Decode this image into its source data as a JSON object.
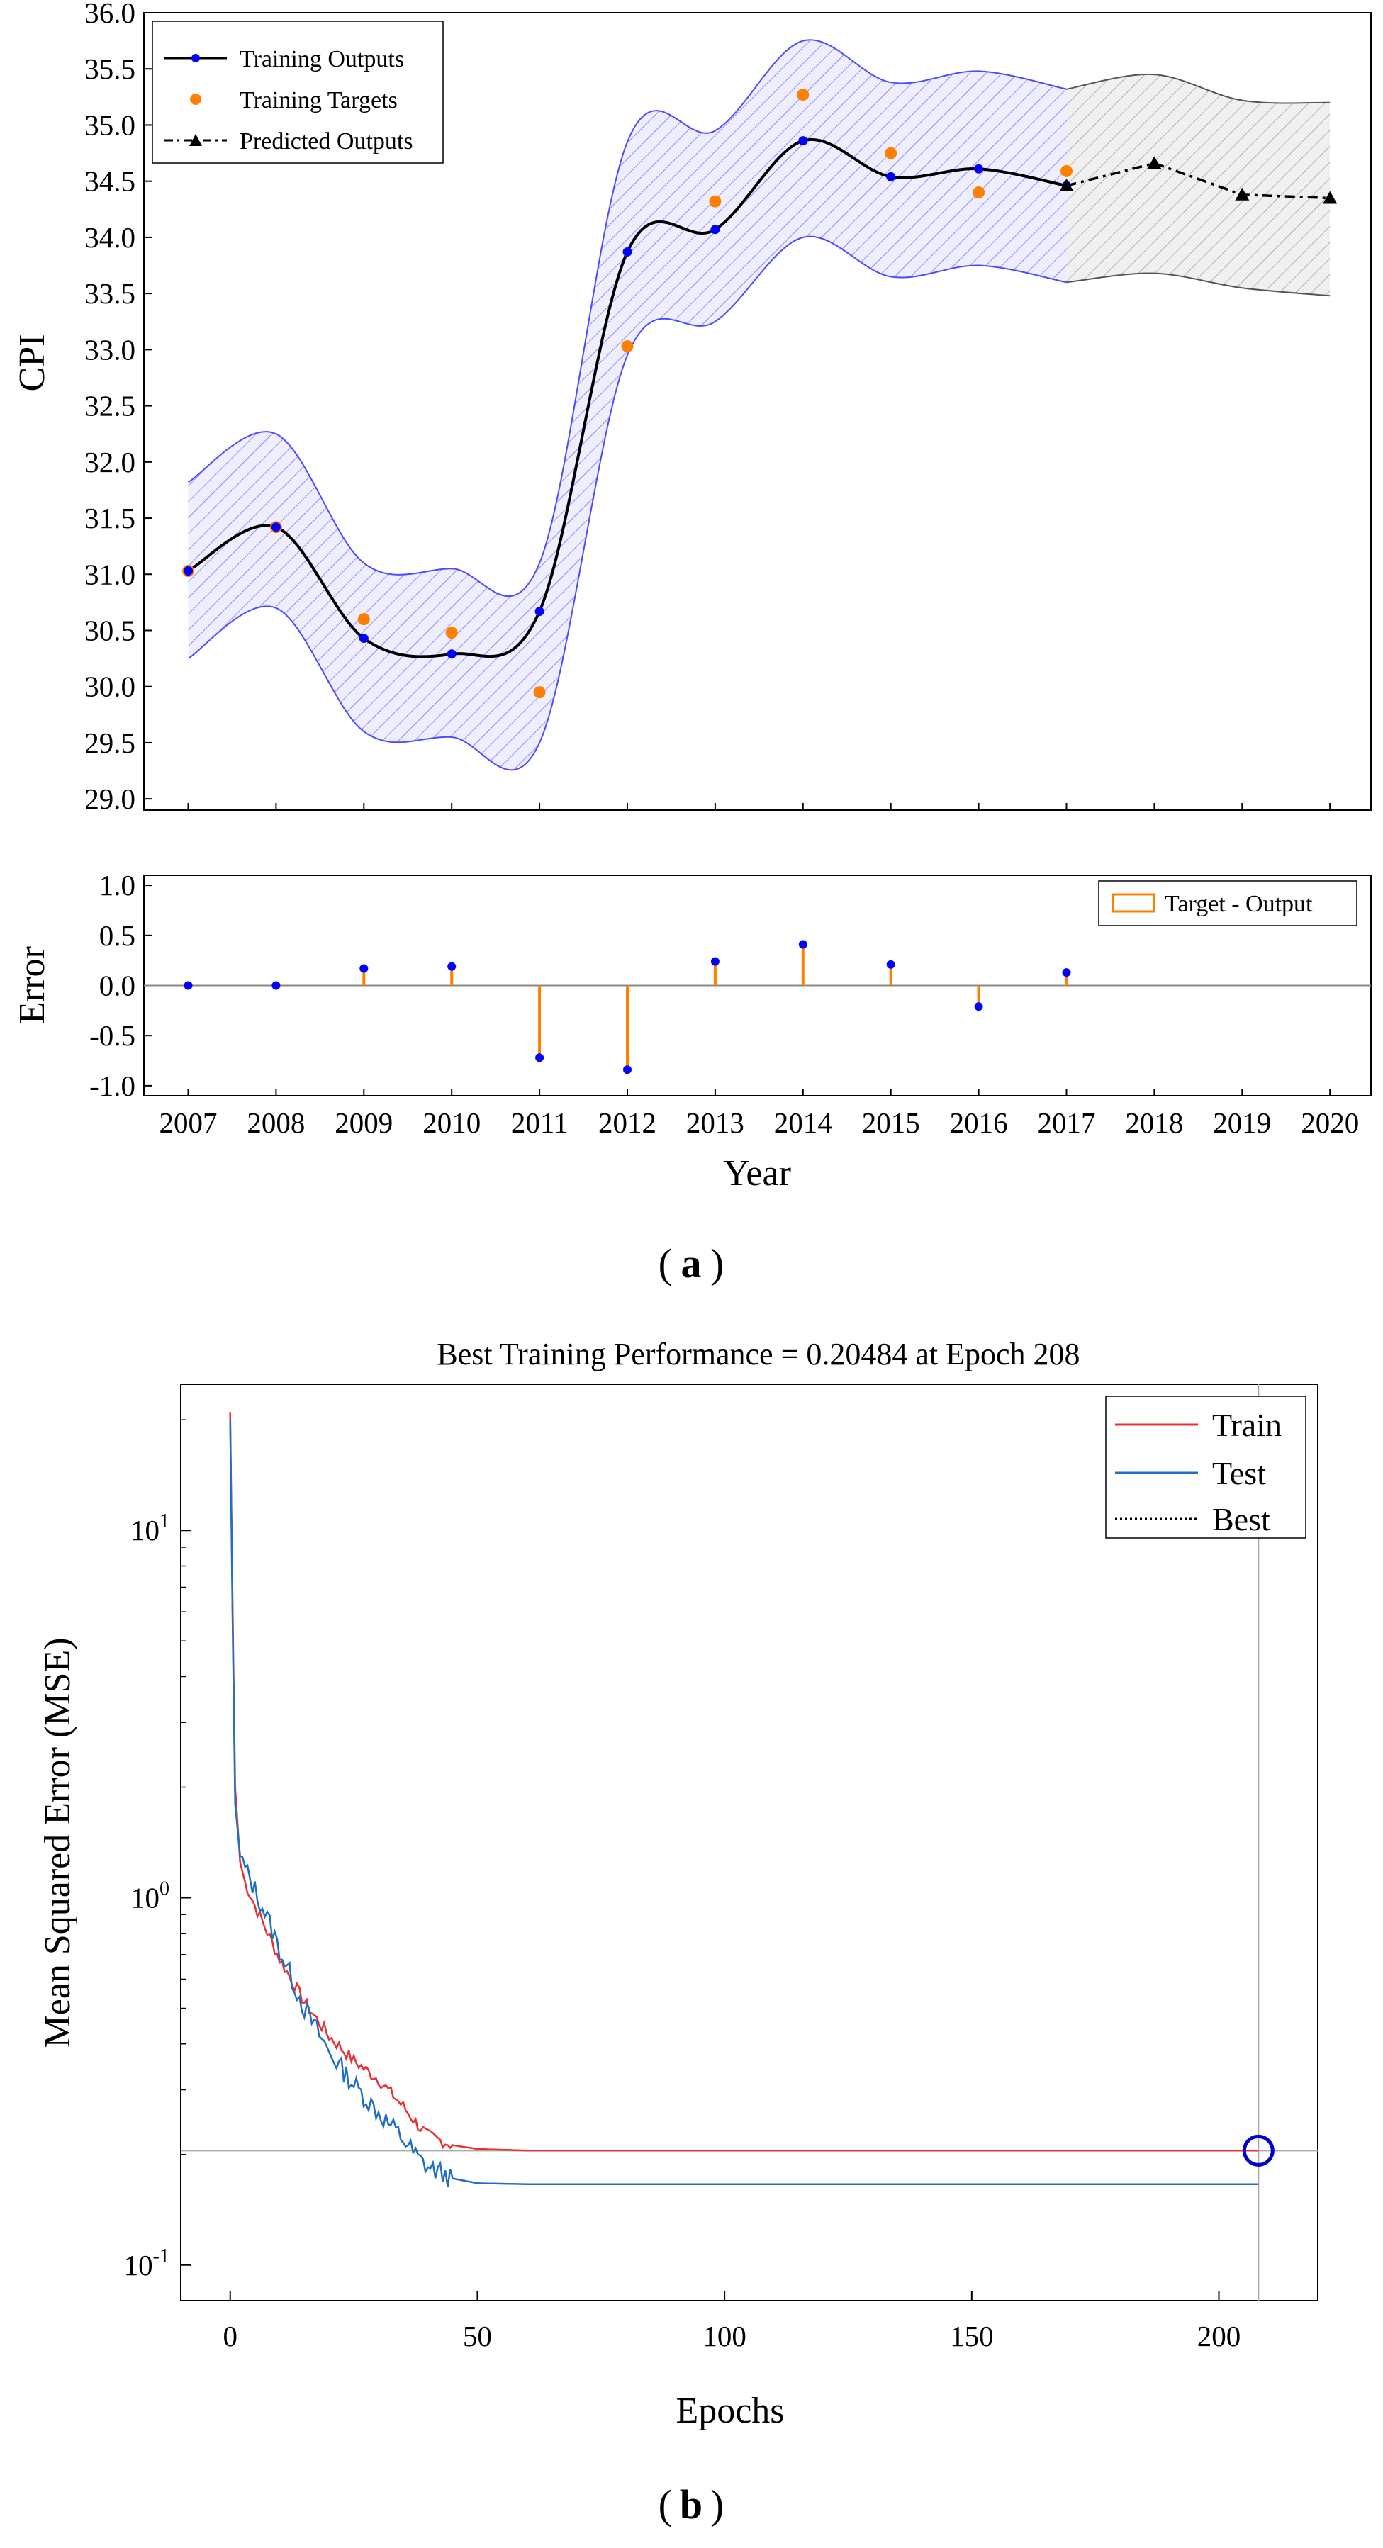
{
  "chart_data": [
    {
      "id": "a",
      "type": "line",
      "panel_label": "a",
      "title": "",
      "xlabel": "Year",
      "ylabel": "CPI",
      "x_ticks": [
        2007,
        2008,
        2009,
        2010,
        2011,
        2012,
        2013,
        2014,
        2015,
        2016,
        2017,
        2018,
        2019,
        2020
      ],
      "ylim": [
        28.9,
        36.0
      ],
      "y_ticks": [
        "29.0",
        "29.5",
        "30.0",
        "30.5",
        "31.0",
        "31.5",
        "32.0",
        "32.5",
        "33.0",
        "33.5",
        "34.0",
        "34.5",
        "35.0",
        "35.5",
        "36.0"
      ],
      "legend_position": "top-left",
      "series": [
        {
          "name": "Training Outputs",
          "color": "#0000ff",
          "x": [
            2007,
            2008,
            2009,
            2010,
            2011,
            2012,
            2013,
            2014,
            2015,
            2016,
            2017
          ],
          "values": [
            31.03,
            31.42,
            30.43,
            30.29,
            30.67,
            33.87,
            34.07,
            34.86,
            34.54,
            34.61,
            34.46
          ]
        },
        {
          "name": "Training Targets",
          "color": "#ff8000",
          "x": [
            2007,
            2008,
            2009,
            2010,
            2011,
            2012,
            2013,
            2014,
            2015,
            2016,
            2017
          ],
          "values": [
            31.03,
            31.42,
            30.6,
            30.48,
            29.95,
            33.03,
            34.32,
            35.27,
            34.75,
            34.4,
            34.59
          ]
        },
        {
          "name": "Predicted Outputs",
          "color": "#000000",
          "x": [
            2017,
            2018,
            2019,
            2020
          ],
          "values": [
            34.46,
            34.66,
            34.38,
            34.35
          ]
        }
      ],
      "confidence_band": {
        "training_color": "#4b4bff",
        "prediction_color": "#555555",
        "x": [
          2007,
          2008,
          2009,
          2010,
          2011,
          2012,
          2013,
          2014,
          2015,
          2016,
          2017,
          2018,
          2019,
          2020
        ],
        "upper": [
          31.82,
          32.25,
          31.1,
          31.05,
          31.1,
          34.85,
          34.95,
          35.75,
          35.38,
          35.48,
          35.32,
          35.45,
          35.22,
          35.2
        ],
        "lower": [
          30.25,
          30.7,
          29.6,
          29.55,
          29.5,
          32.95,
          33.25,
          34.0,
          33.65,
          33.75,
          33.6,
          33.68,
          33.55,
          33.48
        ]
      }
    },
    {
      "id": "a-error",
      "type": "bar",
      "xlabel": "Year",
      "ylabel": "Error",
      "ylim": [
        -1.1,
        1.1
      ],
      "y_ticks": [
        "-1.0",
        "-0.5",
        "0.0",
        "0.5",
        "1.0"
      ],
      "legend_position": "top-right",
      "series": [
        {
          "name": "Target - Output",
          "color": "#ff8000",
          "x": [
            2007,
            2008,
            2009,
            2010,
            2011,
            2012,
            2013,
            2014,
            2015,
            2016,
            2017
          ],
          "values": [
            0.0,
            0.0,
            0.17,
            0.19,
            -0.72,
            -0.84,
            0.24,
            0.41,
            0.21,
            -0.21,
            0.13
          ]
        }
      ]
    },
    {
      "id": "b",
      "type": "line",
      "panel_label": "b",
      "title": "Best Training Performance = 0.20484 at Epoch 208",
      "xlabel": "Epochs",
      "ylabel": "Mean Squared Error (MSE)",
      "x_scale": "linear",
      "y_scale": "log",
      "xlim": [
        -10,
        220
      ],
      "ylim": [
        0.08,
        25
      ],
      "x_ticks": [
        "0",
        "50",
        "100",
        "150",
        "200"
      ],
      "y_ticks": [
        {
          "base": "10",
          "exp": "1",
          "value": 10
        },
        {
          "base": "10",
          "exp": "0",
          "value": 1
        },
        {
          "base": "10",
          "exp": "-1",
          "value": 0.1
        }
      ],
      "legend_position": "top-right",
      "best": {
        "epoch": 208,
        "value": 0.20484,
        "marker_color": "#0000cc"
      },
      "series": [
        {
          "name": "Train",
          "color": "#e83030",
          "x": [
            0,
            0.5,
            1,
            2,
            3,
            5,
            8,
            10,
            15,
            20,
            25,
            30,
            35,
            38,
            40,
            45,
            50,
            60,
            100,
            150,
            208
          ],
          "values": [
            21,
            6,
            2.0,
            1.25,
            1.1,
            0.95,
            0.78,
            0.68,
            0.52,
            0.42,
            0.36,
            0.32,
            0.27,
            0.24,
            0.225,
            0.212,
            0.207,
            0.205,
            0.205,
            0.205,
            0.205
          ]
        },
        {
          "name": "Test",
          "color": "#1f6fc4",
          "x": [
            0,
            0.5,
            1,
            2,
            3,
            5,
            8,
            10,
            15,
            20,
            25,
            30,
            35,
            38,
            40,
            45,
            50,
            60,
            100,
            150,
            208
          ],
          "values": [
            20,
            5.5,
            1.8,
            1.3,
            1.2,
            1.05,
            0.85,
            0.72,
            0.5,
            0.38,
            0.31,
            0.26,
            0.22,
            0.195,
            0.185,
            0.172,
            0.167,
            0.166,
            0.166,
            0.166,
            0.166
          ]
        },
        {
          "name": "Best",
          "color": "#000000",
          "x": [
            -10,
            220
          ],
          "values": [
            0.20484,
            0.20484
          ]
        }
      ]
    }
  ]
}
